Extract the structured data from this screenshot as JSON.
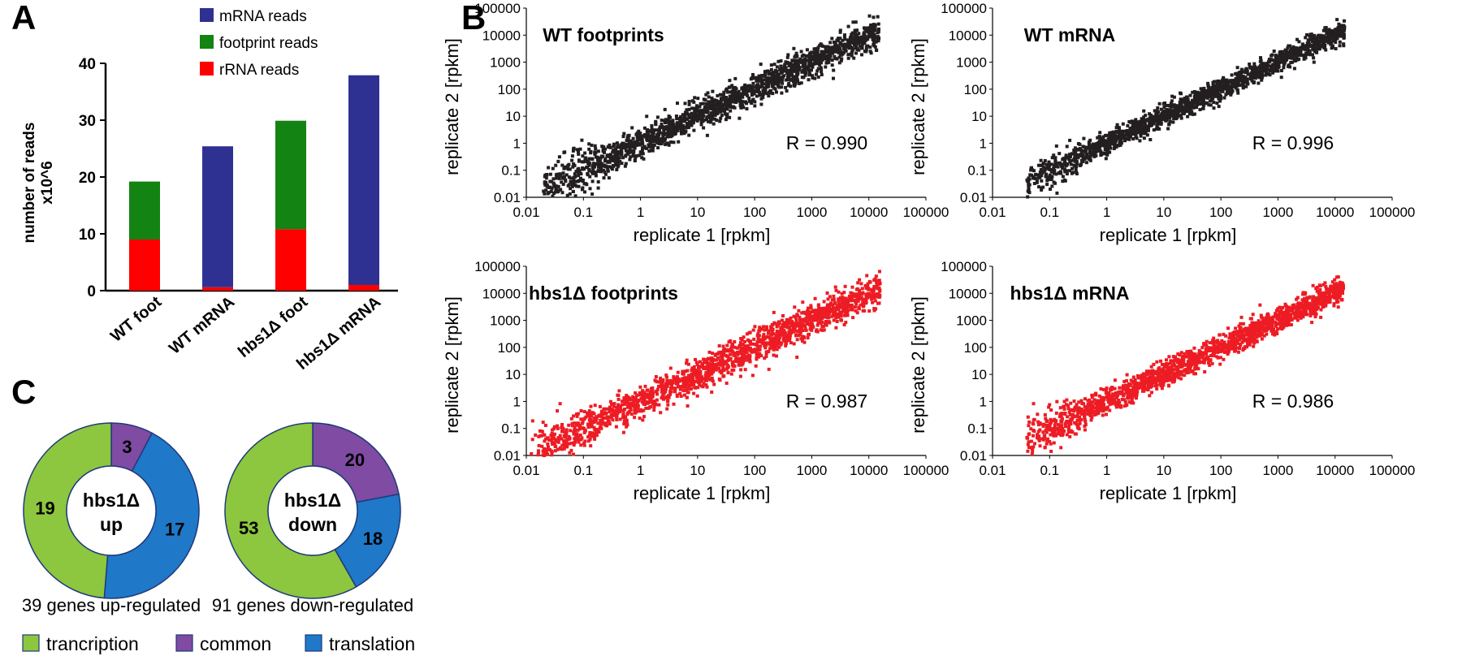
{
  "panels": {
    "a": "A",
    "b": "B",
    "c": "C"
  },
  "chart_data": [
    {
      "id": "bar",
      "type": "bar",
      "stacked": true,
      "title": "",
      "ylabel_line1": "number of reads",
      "ylabel_line2": "x10^6",
      "ylim": [
        0,
        40
      ],
      "yticks": [
        "0",
        "10",
        "20",
        "30",
        "40"
      ],
      "categories": [
        "WT foot",
        "WT mRNA",
        "hbs1Δ foot",
        "hbs1Δ mRNA"
      ],
      "series": [
        {
          "name": "rRNA reads",
          "color": "#ff0000",
          "values": [
            9,
            0.6,
            10.8,
            1.0
          ]
        },
        {
          "name": "footprint reads",
          "color": "#138313",
          "values": [
            10.2,
            0,
            19.1,
            0
          ]
        },
        {
          "name": "mRNA reads",
          "color": "#2e3192",
          "values": [
            0,
            24.8,
            0,
            36.9
          ]
        }
      ],
      "legend": [
        "mRNA reads",
        "footprint reads",
        "rRNA reads"
      ],
      "legend_position": "top-right"
    },
    {
      "id": "sc1",
      "type": "scatter",
      "title": "WT footprints",
      "color": "#231f20",
      "xlabel": "replicate 1 [rpkm]",
      "ylabel": "replicate 2 [rpkm]",
      "xticks": [
        "0.01",
        "0.1",
        "1",
        "10",
        "100",
        "1000",
        "10000",
        "100000"
      ],
      "yticks": [
        "0.01",
        "0.1",
        "1",
        "10",
        "100",
        "1000",
        "10000",
        "100000"
      ],
      "xlim": [
        0.01,
        100000
      ],
      "ylim": [
        0.01,
        100000
      ],
      "scale": "log",
      "annotation": "R = 0.990",
      "x_min": 0.02,
      "x_max": 15000,
      "spread": 0.28
    },
    {
      "id": "sc2",
      "type": "scatter",
      "title": "WT mRNA",
      "color": "#231f20",
      "xlabel": "replicate 1 [rpkm]",
      "ylabel": "replicate 2 [rpkm]",
      "xticks": [
        "0.01",
        "0.1",
        "1",
        "10",
        "100",
        "1000",
        "10000",
        "100000"
      ],
      "yticks": [
        "0.01",
        "0.1",
        "1",
        "10",
        "100",
        "1000",
        "10000",
        "100000"
      ],
      "xlim": [
        0.01,
        100000
      ],
      "ylim": [
        0.01,
        100000
      ],
      "scale": "log",
      "annotation": "R = 0.996",
      "x_min": 0.04,
      "x_max": 15000,
      "spread": 0.2
    },
    {
      "id": "sc3",
      "type": "scatter",
      "title": "hbs1Δ footprints",
      "color": "#ed1c24",
      "xlabel": "replicate 1 [rpkm]",
      "ylabel": "replicate 2 [rpkm]",
      "xticks": [
        "0.01",
        "0.1",
        "1",
        "10",
        "100",
        "1000",
        "10000",
        "100000"
      ],
      "yticks": [
        "0.01",
        "0.1",
        "1",
        "10",
        "100",
        "1000",
        "10000",
        "100000"
      ],
      "xlim": [
        0.01,
        100000
      ],
      "ylim": [
        0.01,
        100000
      ],
      "scale": "log",
      "annotation": "R = 0.987",
      "x_min": 0.012,
      "x_max": 16000,
      "spread": 0.3
    },
    {
      "id": "sc4",
      "type": "scatter",
      "title": "hbs1Δ mRNA",
      "color": "#ed1c24",
      "xlabel": "replicate 1 [rpkm]",
      "ylabel": "replicate 2 [rpkm]",
      "xticks": [
        "0.01",
        "0.1",
        "1",
        "10",
        "100",
        "1000",
        "10000",
        "100000"
      ],
      "yticks": [
        "0.01",
        "0.1",
        "1",
        "10",
        "100",
        "1000",
        "10000",
        "100000"
      ],
      "xlim": [
        0.01,
        100000
      ],
      "ylim": [
        0.01,
        100000
      ],
      "scale": "log",
      "annotation": "R = 0.986",
      "x_min": 0.04,
      "x_max": 14000,
      "spread": 0.24
    },
    {
      "id": "donut1",
      "type": "pie",
      "center_line1": "hbs1Δ",
      "center_line2": "up",
      "caption": "39 genes up-regulated",
      "slices": [
        {
          "name": "common",
          "value": 3,
          "label": "3",
          "color": "#7f4ba3"
        },
        {
          "name": "translation",
          "value": 17,
          "label": "17",
          "color": "#1f78c8"
        },
        {
          "name": "trancription",
          "value": 19,
          "label": "19",
          "color": "#8dc63f"
        }
      ]
    },
    {
      "id": "donut2",
      "type": "pie",
      "center_line1": "hbs1Δ",
      "center_line2": "down",
      "caption": "91 genes down-regulated",
      "slices": [
        {
          "name": "common",
          "value": 20,
          "label": "20",
          "color": "#7f4ba3"
        },
        {
          "name": "translation",
          "value": 18,
          "label": "18",
          "color": "#1f78c8"
        },
        {
          "name": "trancription",
          "value": 53,
          "label": "53",
          "color": "#8dc63f"
        }
      ]
    }
  ],
  "donut_legend": [
    {
      "label": "trancription",
      "color": "#8dc63f"
    },
    {
      "label": "common",
      "color": "#7f4ba3"
    },
    {
      "label": "translation",
      "color": "#1f78c8"
    }
  ]
}
